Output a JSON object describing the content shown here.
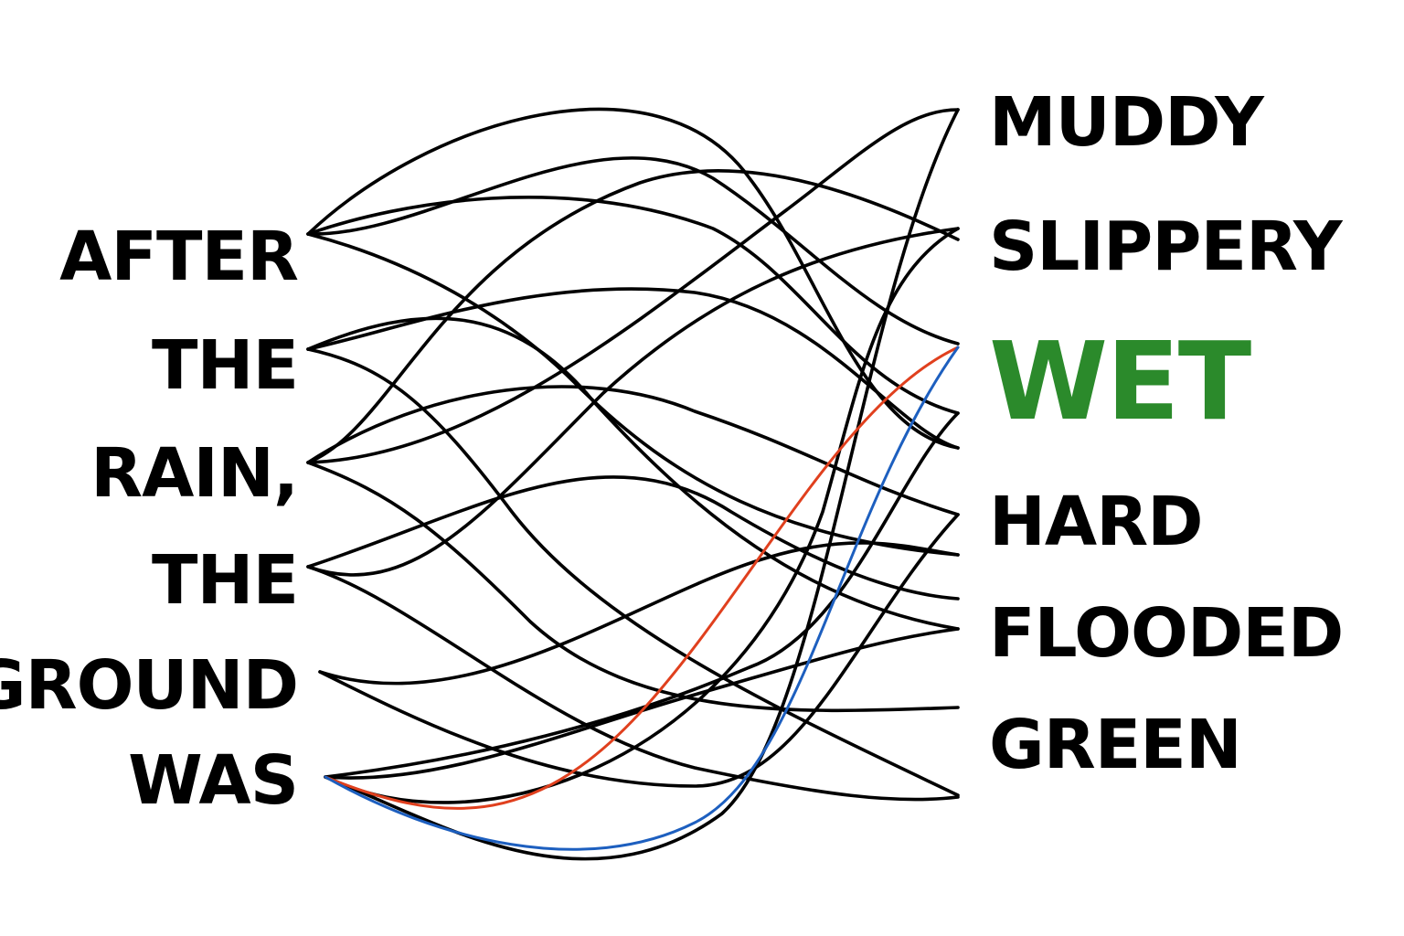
{
  "source_words": [
    "AFTER",
    "THE",
    "RAIN,",
    "THE",
    "GROUND",
    "WAS"
  ],
  "target_words": [
    "MUDDY",
    "SLIPPERY",
    "WET",
    "HARD",
    "FLOODED",
    "GREEN"
  ],
  "highlighted_target": "WET",
  "colors": {
    "background": "#ffffff",
    "text": "#000000",
    "highlight_text": "#2b8a2b",
    "link_default": "#000000",
    "link_highlight_primary": "#e0401e",
    "link_highlight_secondary": "#1d5fbf"
  }
}
